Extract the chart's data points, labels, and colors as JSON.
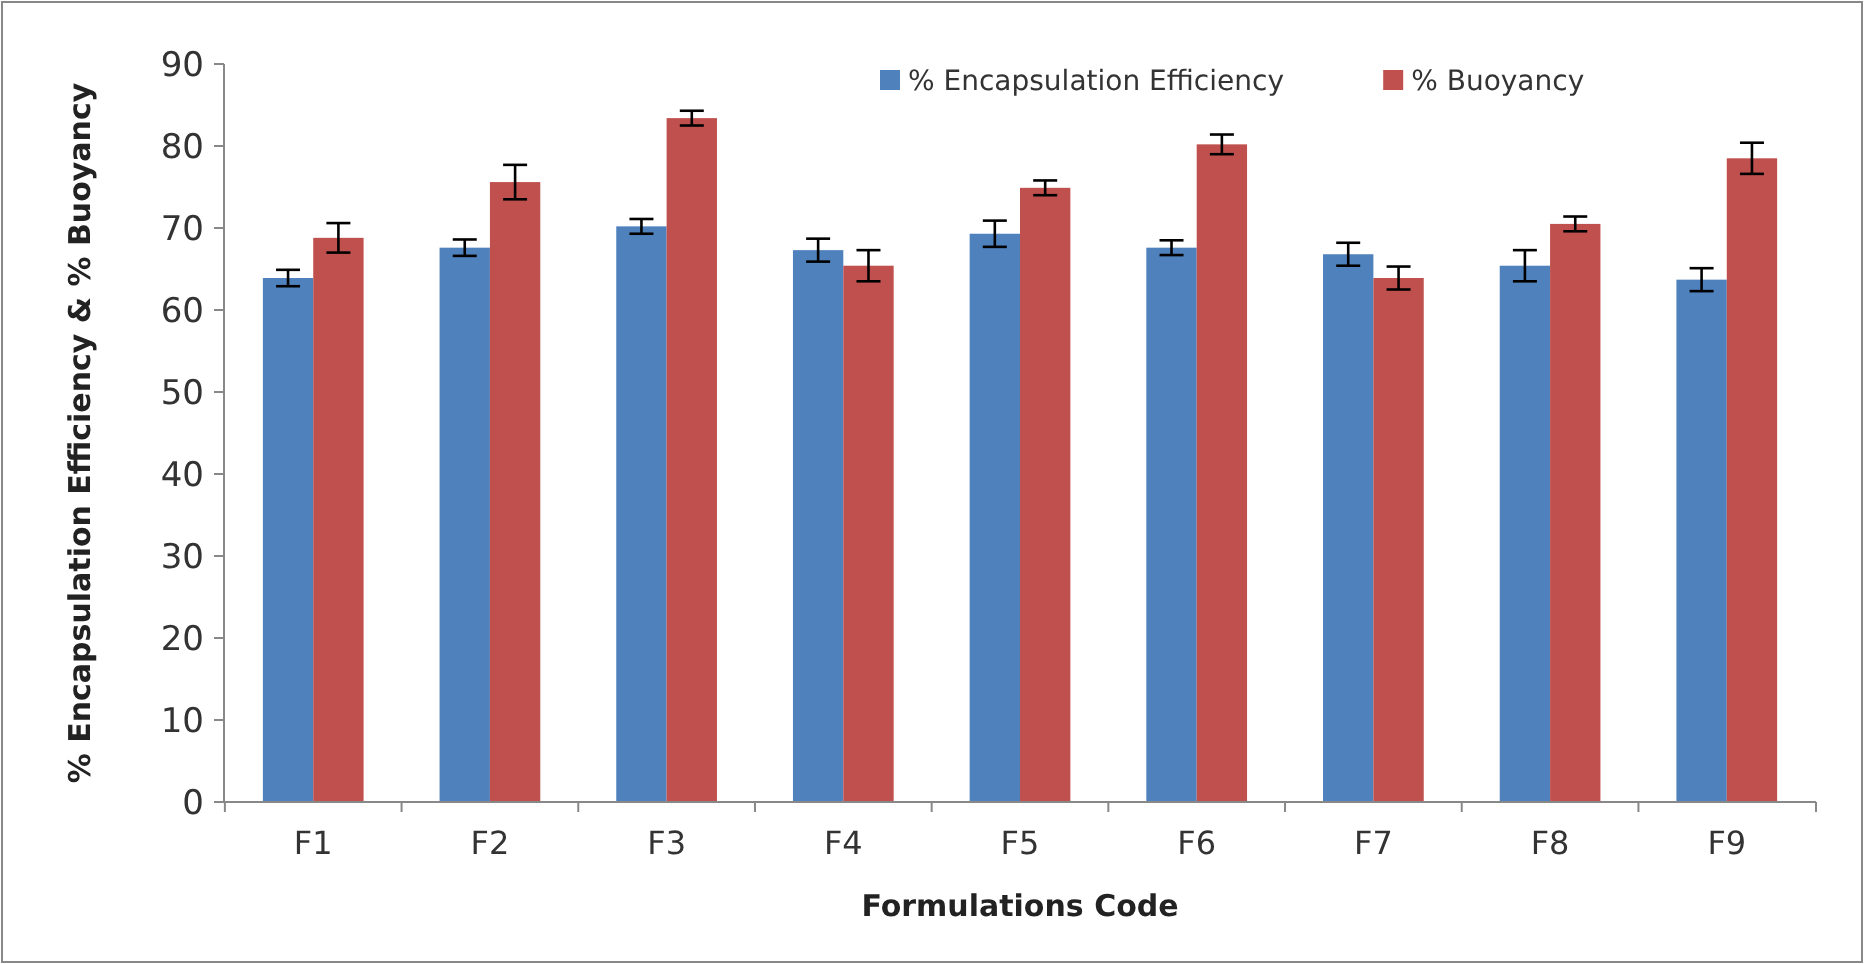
{
  "chart_data": {
    "type": "bar",
    "xlabel": "Formulations Code",
    "ylabel": "% Encapsulation Efficiency & % Buoyancy",
    "categories": [
      "F1",
      "F2",
      "F3",
      "F4",
      "F5",
      "F6",
      "F7",
      "F8",
      "F9"
    ],
    "series": [
      {
        "name": "% Encapsulation Efficiency",
        "color": "#4f81bd",
        "values": [
          63.9,
          67.6,
          70.2,
          67.3,
          69.3,
          67.6,
          66.8,
          65.4,
          63.7
        ],
        "errors": [
          1.0,
          1.0,
          0.9,
          1.4,
          1.6,
          0.9,
          1.4,
          1.9,
          1.4
        ]
      },
      {
        "name": "% Buoyancy",
        "color": "#c0504d",
        "values": [
          68.8,
          75.6,
          83.4,
          65.4,
          74.9,
          80.2,
          63.9,
          70.5,
          78.5
        ],
        "errors": [
          1.8,
          2.1,
          0.9,
          1.9,
          0.9,
          1.2,
          1.4,
          0.9,
          1.9
        ]
      }
    ],
    "ylim": [
      0,
      90
    ],
    "yticks": [
      0,
      10,
      20,
      30,
      40,
      50,
      60,
      70,
      80,
      90
    ],
    "grid": false,
    "legend": "top right"
  }
}
